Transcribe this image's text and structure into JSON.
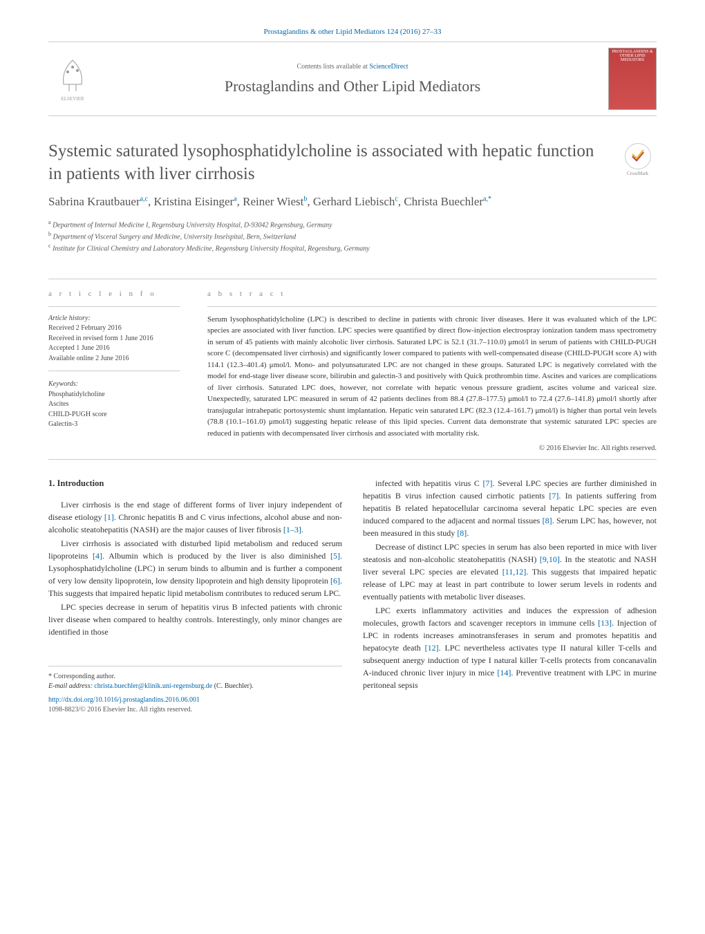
{
  "journal_ref": "Prostaglandins & other Lipid Mediators 124 (2016) 27–33",
  "contents_at": "Contents lists available at ",
  "sciencedirect": "ScienceDirect",
  "journal_name": "Prostaglandins and Other Lipid Mediators",
  "publisher_logo": "ELSEVIER",
  "cover_caption": "PROSTAGLANDINS & OTHER LIPID MEDIATORS",
  "crossmark_label": "CrossMark",
  "title": "Systemic saturated lysophosphatidylcholine is associated with hepatic function in patients with liver cirrhosis",
  "authors_html": "Sabrina Krautbauer",
  "authors": [
    {
      "name": "Sabrina Krautbauer",
      "aff": "a,c"
    },
    {
      "name": "Kristina Eisinger",
      "aff": "a"
    },
    {
      "name": "Reiner Wiest",
      "aff": "b"
    },
    {
      "name": "Gerhard Liebisch",
      "aff": "c"
    },
    {
      "name": "Christa Buechler",
      "aff": "a,*"
    }
  ],
  "affiliations": [
    {
      "sup": "a",
      "text": "Department of Internal Medicine I, Regensburg University Hospital, D-93042 Regensburg, Germany"
    },
    {
      "sup": "b",
      "text": "Department of Visceral Surgery and Medicine, University Inselspital, Bern, Switzerland"
    },
    {
      "sup": "c",
      "text": "Institute for Clinical Chemistry and Laboratory Medicine, Regensburg University Hospital, Regensburg, Germany"
    }
  ],
  "labels": {
    "article_info": "a r t i c l e   i n f o",
    "abstract": "a b s t r a c t"
  },
  "history": {
    "label": "Article history:",
    "received": "Received 2 February 2016",
    "revised": "Received in revised form 1 June 2016",
    "accepted": "Accepted 1 June 2016",
    "online": "Available online 2 June 2016"
  },
  "keywords": {
    "label": "Keywords:",
    "items": [
      "Phosphatidylcholine",
      "Ascites",
      "CHILD-PUGH score",
      "Galectin-3"
    ]
  },
  "abstract": "Serum lysophosphatidylcholine (LPC) is described to decline in patients with chronic liver diseases. Here it was evaluated which of the LPC species are associated with liver function. LPC species were quantified by direct flow-injection electrospray ionization tandem mass spectrometry in serum of 45 patients with mainly alcoholic liver cirrhosis. Saturated LPC is 52.1 (31.7–110.0) μmol/l in serum of patients with CHILD-PUGH score C (decompensated liver cirrhosis) and significantly lower compared to patients with well-compensated disease (CHILD-PUGH score A) with 114.1 (12.3–401.4) μmol/l. Mono- and polyunsaturated LPC are not changed in these groups. Saturated LPC is negatively correlated with the model for end-stage liver disease score, bilirubin and galectin-3 and positively with Quick prothrombin time. Ascites and varices are complications of liver cirrhosis. Saturated LPC does, however, not correlate with hepatic venous pressure gradient, ascites volume and variceal size. Unexpectedly, saturated LPC measured in serum of 42 patients declines from 88.4 (27.8–177.5) μmol/l to 72.4 (27.6–141.8) μmol/l shortly after transjugular intrahepatic portosystemic shunt implantation. Hepatic vein saturated LPC (82.3 (12.4–161.7) μmol/l) is higher than portal vein levels (78.8 (10.1–161.0) μmol/l) suggesting hepatic release of this lipid species. Current data demonstrate that systemic saturated LPC species are reduced in patients with decompensated liver cirrhosis and associated with mortality risk.",
  "copyright": "© 2016 Elsevier Inc. All rights reserved.",
  "intro_heading": "1. Introduction",
  "intro_left": [
    "Liver cirrhosis is the end stage of different forms of liver injury independent of disease etiology [1]. Chronic hepatitis B and C virus infections, alcohol abuse and non-alcoholic steatohepatitis (NASH) are the major causes of liver fibrosis [1–3].",
    "Liver cirrhosis is associated with disturbed lipid metabolism and reduced serum lipoproteins [4]. Albumin which is produced by the liver is also diminished [5]. Lysophosphatidylcholine (LPC) in serum binds to albumin and is further a component of very low density lipoprotein, low density lipoprotein and high density lipoprotein [6]. This suggests that impaired hepatic lipid metabolism contributes to reduced serum LPC.",
    "LPC species decrease in serum of hepatitis virus B infected patients with chronic liver disease when compared to healthy controls. Interestingly, only minor changes are identified in those"
  ],
  "intro_right": [
    "infected with hepatitis virus C [7]. Several LPC species are further diminished in hepatitis B virus infection caused cirrhotic patients [7]. In patients suffering from hepatitis B related hepatocellular carcinoma several hepatic LPC species are even induced compared to the adjacent and normal tissues [8]. Serum LPC has, however, not been measured in this study [8].",
    "Decrease of distinct LPC species in serum has also been reported in mice with liver steatosis and non-alcoholic steatohepatitis (NASH) [9,10]. In the steatotic and NASH liver several LPC species are elevated [11,12]. This suggests that impaired hepatic release of LPC may at least in part contribute to lower serum levels in rodents and eventually patients with metabolic liver diseases.",
    "LPC exerts inflammatory activities and induces the expression of adhesion molecules, growth factors and scavenger receptors in immune cells [13]. Injection of LPC in rodents increases aminotransferases in serum and promotes hepatitis and hepatocyte death [12]. LPC nevertheless activates type II natural killer T-cells and subsequent anergy induction of type I natural killer T-cells protects from concanavalin A-induced chronic liver injury in mice [14]. Preventive treatment with LPC in murine peritoneal sepsis"
  ],
  "footer": {
    "corresponding": "* Corresponding author.",
    "email_label": "E-mail address: ",
    "email": "christa.buechler@klinik.uni-regensburg.de",
    "email_suffix": " (C. Buechler).",
    "doi": "http://dx.doi.org/10.1016/j.prostaglandins.2016.06.001",
    "issn": "1098-8823/© 2016 Elsevier Inc. All rights reserved."
  },
  "colors": {
    "link": "#0066aa",
    "text": "#3a3a3a",
    "heading": "#555555",
    "border": "#cccccc",
    "cover_bg": "#c04040"
  }
}
